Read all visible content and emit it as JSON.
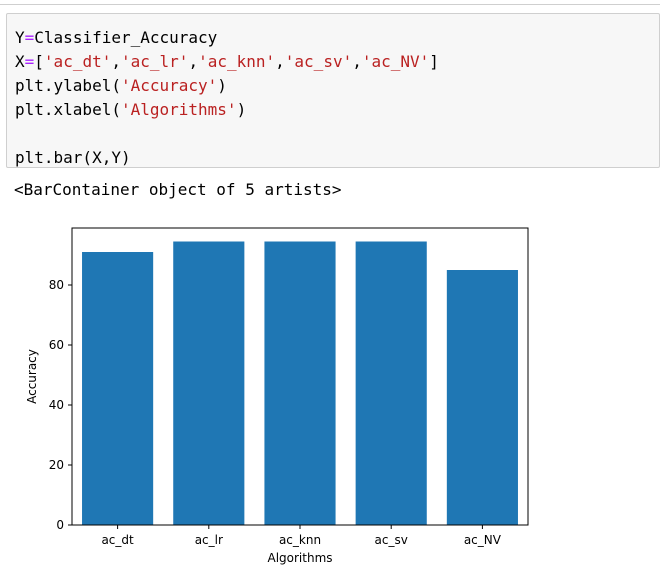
{
  "code": {
    "line1_var": "Y",
    "line1_op": "=",
    "line1_rest": "Classifier_Accuracy",
    "line2_var": "X",
    "line2_op": "=",
    "line2_open": "[",
    "line2_s1": "'ac_dt'",
    "line2_s2": "'ac_lr'",
    "line2_s3": "'ac_knn'",
    "line2_s4": "'ac_sv'",
    "line2_s5": "'ac_NV'",
    "line2_close": "]",
    "sep": ",",
    "line3_call": "plt.ylabel(",
    "line3_arg": "'Accuracy'",
    "line4_call": "plt.xlabel(",
    "line4_arg": "'Algorithms'",
    "close_paren": ")",
    "line6": "plt.bar(X,Y)"
  },
  "output": {
    "text": "<BarContainer object of 5 artists>"
  },
  "colors": {
    "bar": "#1f77b4",
    "code_background": "#f7f7f7",
    "keyword_operator": "#aa22ff",
    "string": "#ba2121"
  },
  "chart_data": {
    "type": "bar",
    "categories": [
      "ac_dt",
      "ac_lr",
      "ac_knn",
      "ac_sv",
      "ac_NV"
    ],
    "values": [
      91,
      94.5,
      94.5,
      94.5,
      85
    ],
    "title": "",
    "xlabel": "Algorithms",
    "ylabel": "Accuracy",
    "ylim": [
      0,
      99
    ],
    "yticks": [
      0,
      20,
      40,
      60,
      80
    ],
    "grid": false
  }
}
